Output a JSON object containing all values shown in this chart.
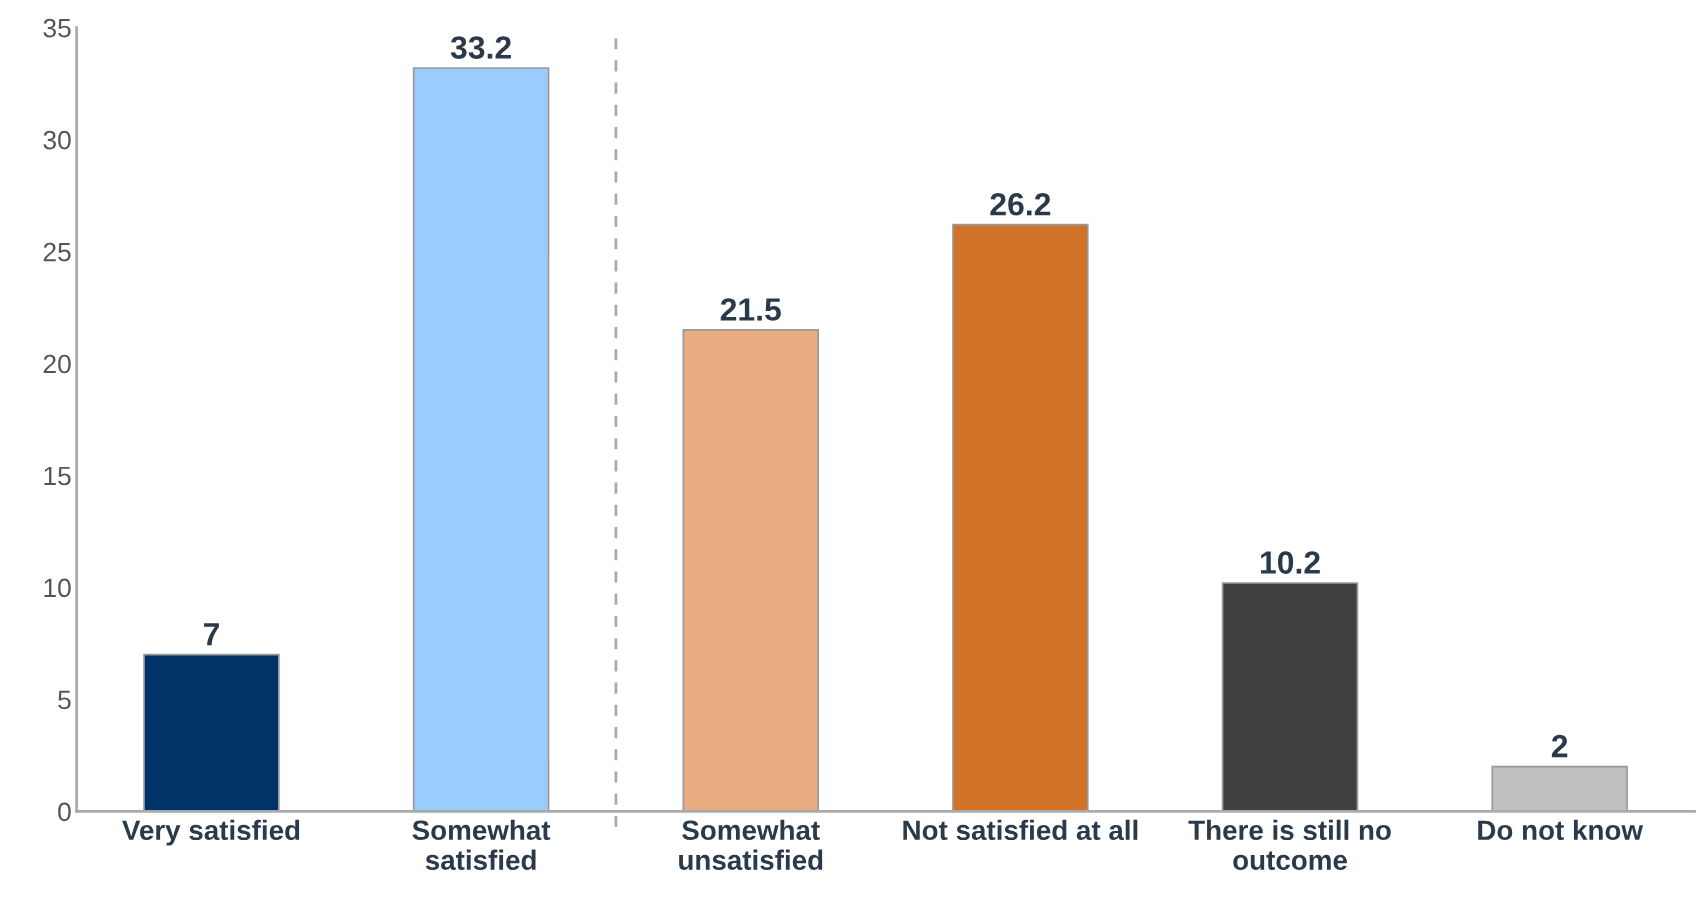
{
  "chart_data": {
    "type": "bar",
    "categories": [
      "Very satisfied",
      "Somewhat\nsatisfied",
      "Somewhat\nunsatisfied",
      "Not satisfied at all",
      "There is still no\noutcome",
      "Do not know"
    ],
    "values": [
      7,
      33.2,
      21.5,
      26.2,
      10.2,
      2
    ],
    "colors": [
      "#003366",
      "#99ccff",
      "#e8ad80",
      "#d07228",
      "#404040",
      "#bfbfbf"
    ],
    "ylim": [
      0,
      35
    ],
    "yticks": [
      0,
      5,
      10,
      15,
      20,
      25,
      30,
      35
    ],
    "data_labels": true,
    "grid": false,
    "legend": false
  }
}
